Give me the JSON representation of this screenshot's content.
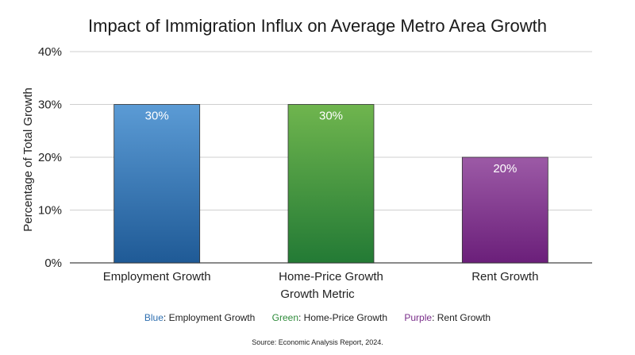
{
  "chart_data": {
    "type": "bar",
    "title": "Impact of Immigration Influx on Average Metro Area Growth",
    "xlabel": "Growth Metric",
    "ylabel": "Percentage of Total Growth",
    "categories": [
      "Employment Growth",
      "Home-Price Growth",
      "Rent Growth"
    ],
    "values": [
      30,
      30,
      20
    ],
    "data_labels": [
      "30%",
      "30%",
      "20%"
    ],
    "ylim": [
      0,
      40
    ],
    "yticks": [
      0,
      10,
      20,
      30,
      40
    ],
    "ytick_labels": [
      "0%",
      "10%",
      "20%",
      "30%",
      "40%"
    ],
    "grid": true,
    "bar_colors": [
      {
        "top": "#5b9bd5",
        "bottom": "#1f5a96"
      },
      {
        "top": "#6fb54e",
        "bottom": "#237a35"
      },
      {
        "top": "#9c5aa6",
        "bottom": "#6b1f7a"
      }
    ],
    "legend_position": "bottom"
  },
  "legend": [
    {
      "color_word": "Blue",
      "label": ": Employment Growth",
      "color": "#2e6fb0"
    },
    {
      "color_word": "Green",
      "label": ": Home-Price Growth",
      "color": "#2e8b3a"
    },
    {
      "color_word": "Purple",
      "label": ": Rent Growth",
      "color": "#7a2e8a"
    }
  ],
  "source": "Source: Economic Analysis Report, 2024."
}
